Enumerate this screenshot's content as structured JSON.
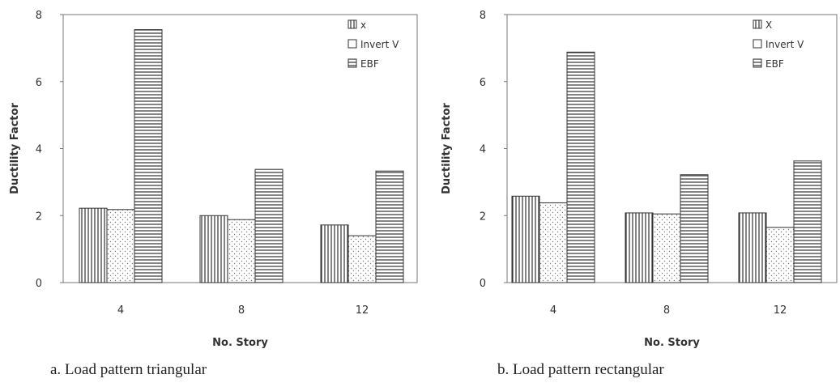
{
  "chart_data": [
    {
      "type": "bar",
      "caption": "a. Load pattern triangular",
      "xlabel": "No. Story",
      "ylabel": "Ductility Factor",
      "categories": [
        "4",
        "8",
        "12"
      ],
      "ylim": [
        0,
        8
      ],
      "yticks": [
        0,
        2,
        4,
        6,
        8
      ],
      "grid": false,
      "legend_position": "top-right",
      "series": [
        {
          "name": "x",
          "values": [
            2.22,
            2.0,
            1.72
          ]
        },
        {
          "name": "Invert V",
          "values": [
            2.18,
            1.88,
            1.4
          ]
        },
        {
          "name": "EBF",
          "values": [
            7.55,
            3.38,
            3.33
          ]
        }
      ]
    },
    {
      "type": "bar",
      "caption": "b. Load pattern rectangular",
      "xlabel": "No. Story",
      "ylabel": "Ductility Factor",
      "categories": [
        "4",
        "8",
        "12"
      ],
      "ylim": [
        0,
        8
      ],
      "yticks": [
        0,
        2,
        4,
        6,
        8
      ],
      "grid": false,
      "legend_position": "top-right",
      "series": [
        {
          "name": "X",
          "values": [
            2.58,
            2.08,
            2.08
          ]
        },
        {
          "name": "Invert V",
          "values": [
            2.38,
            2.05,
            1.65
          ]
        },
        {
          "name": "EBF",
          "values": [
            6.88,
            3.22,
            3.63
          ]
        }
      ]
    }
  ]
}
